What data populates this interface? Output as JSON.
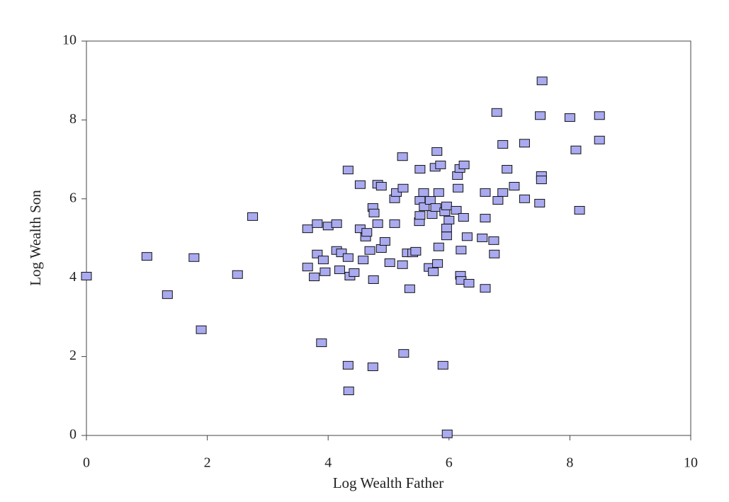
{
  "chart_data": {
    "type": "scatter",
    "x_label": "Log Wealth Father",
    "y_label": "Log Wealth Son",
    "xlim": [
      0,
      10
    ],
    "ylim": [
      0,
      10
    ],
    "xticks": [
      0,
      2,
      4,
      6,
      8,
      10
    ],
    "yticks": [
      0,
      2,
      4,
      6,
      8,
      10
    ],
    "series": [
      {
        "color": "#aaaaf0",
        "x": [
          0.0,
          1.0,
          1.34,
          1.78,
          1.9,
          2.5,
          2.75,
          3.66,
          3.66,
          3.77,
          3.82,
          3.82,
          3.89,
          3.92,
          3.95,
          4.0,
          4.14,
          4.14,
          4.19,
          4.22,
          4.33,
          4.33,
          4.33,
          4.34,
          4.36,
          4.43,
          4.53,
          4.53,
          4.58,
          4.62,
          4.64,
          4.69,
          4.74,
          4.76,
          4.75,
          4.74,
          4.82,
          4.82,
          4.88,
          4.88,
          4.94,
          5.02,
          5.1,
          5.1,
          5.13,
          5.23,
          5.24,
          5.23,
          5.25,
          5.31,
          5.35,
          5.4,
          5.45,
          5.52,
          5.52,
          5.51,
          5.52,
          5.58,
          5.59,
          5.67,
          5.69,
          5.72,
          5.74,
          5.77,
          5.78,
          5.8,
          5.81,
          5.83,
          5.83,
          5.86,
          5.9,
          5.93,
          5.96,
          5.96,
          5.96,
          5.97,
          6.0,
          6.12,
          6.14,
          6.15,
          6.18,
          6.19,
          6.2,
          6.2,
          6.24,
          6.25,
          6.33,
          6.3,
          6.55,
          6.6,
          6.6,
          6.6,
          6.74,
          6.75,
          6.79,
          6.81,
          6.89,
          6.89,
          6.96,
          7.08,
          7.25,
          7.25,
          7.5,
          7.54,
          7.51,
          7.53,
          7.53,
          8.0,
          8.1,
          8.16,
          8.49,
          8.49
        ],
        "values": [
          4.04,
          4.54,
          3.57,
          4.51,
          2.68,
          4.08,
          5.55,
          5.24,
          4.27,
          4.02,
          5.37,
          4.6,
          2.35,
          4.45,
          4.15,
          5.31,
          5.37,
          4.69,
          4.2,
          4.63,
          6.73,
          4.51,
          1.78,
          1.13,
          4.04,
          4.13,
          6.36,
          5.24,
          4.45,
          5.03,
          5.15,
          4.69,
          5.78,
          5.64,
          3.95,
          1.74,
          6.37,
          5.37,
          6.32,
          4.74,
          4.92,
          4.38,
          5.37,
          6.0,
          6.16,
          7.07,
          6.27,
          4.33,
          2.08,
          4.63,
          3.72,
          4.63,
          4.67,
          6.75,
          5.96,
          5.42,
          5.58,
          6.16,
          5.8,
          4.26,
          5.96,
          5.6,
          4.15,
          6.8,
          5.78,
          7.2,
          4.36,
          6.16,
          4.78,
          6.86,
          1.78,
          5.67,
          5.26,
          5.06,
          5.82,
          0.04,
          5.46,
          5.71,
          6.59,
          6.27,
          6.77,
          4.06,
          3.93,
          4.7,
          5.53,
          6.86,
          3.86,
          5.04,
          5.01,
          6.16,
          5.51,
          3.73,
          4.94,
          4.6,
          8.19,
          5.96,
          7.38,
          6.16,
          6.75,
          6.32,
          7.41,
          6.0,
          5.89,
          8.99,
          8.11,
          6.59,
          6.48,
          8.06,
          7.24,
          5.71,
          8.11,
          7.49
        ]
      }
    ]
  }
}
